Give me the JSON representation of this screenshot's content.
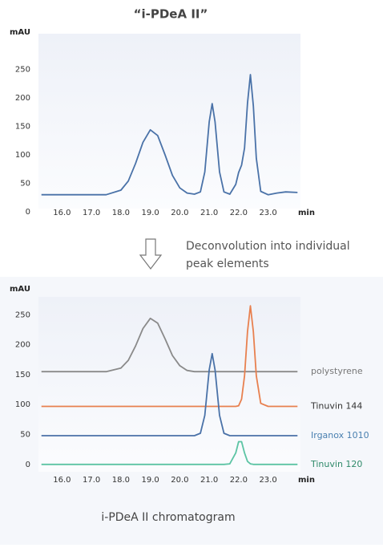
{
  "chart_data": [
    {
      "type": "line",
      "title": "“i-PDeA II”",
      "ylabel": "mAU",
      "xlabel": "min",
      "x": [
        15.3,
        16.0,
        16.5,
        17.0,
        17.5,
        18.0,
        18.25,
        18.5,
        18.75,
        19.0,
        19.25,
        19.5,
        19.75,
        20.0,
        20.25,
        20.5,
        20.7,
        20.85,
        21.0,
        21.1,
        21.2,
        21.35,
        21.5,
        21.7,
        21.9,
        22.0,
        22.1,
        22.2,
        22.3,
        22.4,
        22.5,
        22.6,
        22.75,
        23.0,
        23.3,
        23.6,
        24.0
      ],
      "series": [
        {
          "color": "#4a72a8",
          "values": [
            30,
            30,
            30,
            30,
            30,
            38,
            54,
            85,
            122,
            144,
            134,
            100,
            64,
            42,
            33,
            31,
            35,
            70,
            158,
            190,
            158,
            70,
            35,
            31,
            48,
            69,
            82,
            112,
            191,
            241,
            186,
            94,
            36,
            30,
            33,
            35,
            34
          ]
        }
      ],
      "xlim": [
        15.2,
        24.1
      ],
      "ylim": [
        0,
        310
      ],
      "xticks": [
        {
          "value": 16,
          "label": "16.0"
        },
        {
          "value": 17,
          "label": "17.0"
        },
        {
          "value": 18,
          "label": "18.0"
        },
        {
          "value": 19,
          "label": "19.0"
        },
        {
          "value": 20,
          "label": "20.0"
        },
        {
          "value": 21,
          "label": "21.0"
        },
        {
          "value": 22,
          "label": "22.0"
        },
        {
          "value": 23,
          "label": "23.0"
        }
      ],
      "yticks": [
        0,
        50,
        100,
        150,
        200,
        250
      ]
    },
    {
      "type": "line",
      "ylabel": "mAU",
      "xlabel": "min",
      "x": [
        15.3,
        16.0,
        16.5,
        17.0,
        17.5,
        18.0,
        18.25,
        18.5,
        18.75,
        19.0,
        19.25,
        19.5,
        19.75,
        20.0,
        20.25,
        20.5,
        20.7,
        20.85,
        21.0,
        21.1,
        21.2,
        21.35,
        21.5,
        21.7,
        21.9,
        22.0,
        22.1,
        22.2,
        22.3,
        22.4,
        22.5,
        22.6,
        22.75,
        23.0,
        23.3,
        23.6,
        24.0
      ],
      "series": [
        {
          "name": "polystyrene",
          "color": "#8a8a8a",
          "label_color": "#777777",
          "values": [
            155,
            155,
            155,
            155,
            155,
            161,
            174,
            198,
            227,
            244,
            236,
            210,
            182,
            165,
            157,
            155,
            155,
            155,
            155,
            155,
            155,
            155,
            155,
            155,
            155,
            155,
            155,
            155,
            155,
            155,
            155,
            155,
            155,
            155,
            155,
            155,
            155
          ]
        },
        {
          "name": "Tinuvin 144",
          "color": "#e8804f",
          "label_color": "#333333",
          "values": [
            97,
            97,
            97,
            97,
            97,
            97,
            97,
            97,
            97,
            97,
            97,
            97,
            97,
            97,
            97,
            97,
            97,
            97,
            97,
            97,
            97,
            97,
            97,
            97,
            97,
            98,
            109,
            148,
            222,
            265,
            222,
            148,
            102,
            97,
            97,
            97,
            97
          ]
        },
        {
          "name": "Irganox 1010",
          "color": "#4a72a8",
          "label_color": "#4a80b0",
          "values": [
            48,
            48,
            48,
            48,
            48,
            48,
            48,
            48,
            48,
            48,
            48,
            48,
            48,
            48,
            48,
            48,
            52,
            82,
            158,
            185,
            158,
            82,
            52,
            48,
            48,
            48,
            48,
            48,
            48,
            48,
            48,
            48,
            48,
            48,
            48,
            48,
            48
          ]
        },
        {
          "name": "Tinuvin 120",
          "color": "#5cc4a4",
          "label_color": "#2f8a6a",
          "values": [
            0,
            0,
            0,
            0,
            0,
            0,
            0,
            0,
            0,
            0,
            0,
            0,
            0,
            0,
            0,
            0,
            0,
            0,
            0,
            0,
            0,
            0,
            0,
            1,
            19,
            38,
            38,
            19,
            5,
            1,
            0,
            0,
            0,
            0,
            0,
            0,
            0
          ]
        }
      ],
      "xlim": [
        15.2,
        24.1
      ],
      "ylim": [
        -15,
        280
      ],
      "xticks": [
        {
          "value": 16,
          "label": "16.0"
        },
        {
          "value": 17,
          "label": "17.0"
        },
        {
          "value": 18,
          "label": "18.0"
        },
        {
          "value": 19,
          "label": "19.0"
        },
        {
          "value": 20,
          "label": "20.0"
        },
        {
          "value": 21,
          "label": "21.0"
        },
        {
          "value": 22,
          "label": "22.0"
        },
        {
          "value": 23,
          "label": "23.0"
        }
      ],
      "yticks": [
        0,
        50,
        100,
        150,
        200,
        250
      ]
    }
  ],
  "note_lines": [
    "Deconvolution into individual",
    "peak elements"
  ],
  "caption": "i-PDeA II chromatogram"
}
